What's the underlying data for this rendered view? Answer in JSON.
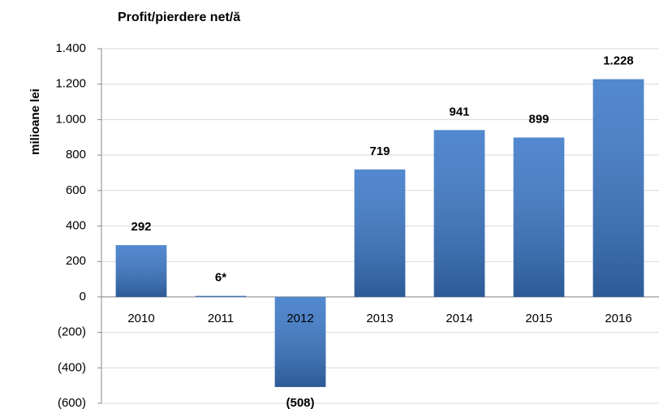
{
  "chart_data": {
    "type": "bar",
    "title": "Profit/pierdere net/ă",
    "y_label": "milioane lei",
    "categories": [
      "2010",
      "2011",
      "2012",
      "2013",
      "2014",
      "2015",
      "2016"
    ],
    "values": [
      292,
      6,
      -508,
      719,
      941,
      899,
      1228
    ],
    "value_labels": [
      "292",
      "6*",
      "(508)",
      "719",
      "941",
      "899",
      "1.228"
    ],
    "color": "#3b78c8",
    "ylim": [
      -600,
      1400
    ],
    "yticks": [
      {
        "value": -600,
        "label": "(600)"
      },
      {
        "value": -400,
        "label": "(400)"
      },
      {
        "value": -200,
        "label": "(200)"
      },
      0,
      200,
      400,
      600,
      800,
      {
        "value": 1000,
        "label": "1.000"
      },
      {
        "value": 1200,
        "label": "1.200"
      },
      {
        "value": 1400,
        "label": "1.400"
      }
    ],
    "grid": true
  }
}
